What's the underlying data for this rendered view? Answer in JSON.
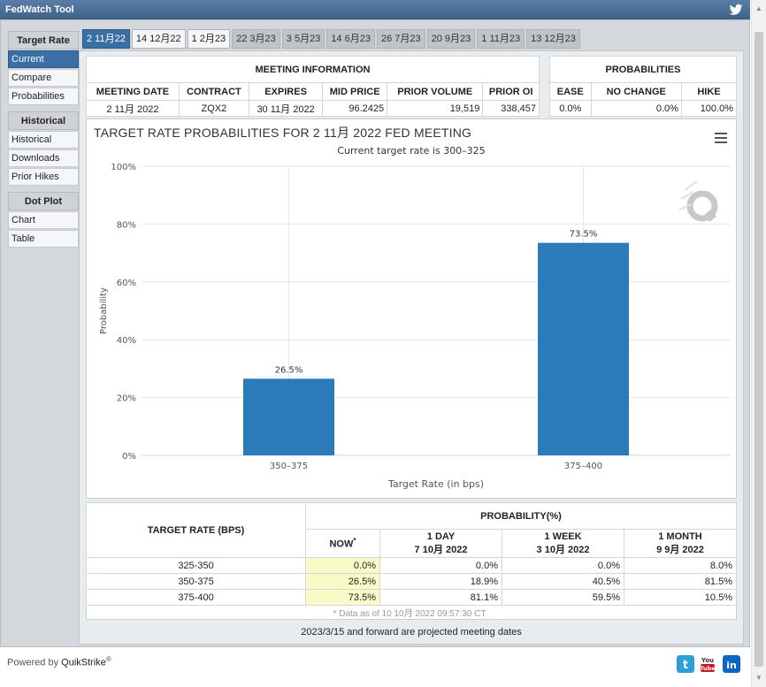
{
  "app": {
    "title": "FedWatch Tool"
  },
  "sidebar": {
    "groups": [
      {
        "header": "Target Rate",
        "items": [
          "Current",
          "Compare",
          "Probabilities"
        ]
      },
      {
        "header": "Historical",
        "items": [
          "Historical",
          "Downloads",
          "Prior Hikes"
        ]
      },
      {
        "header": "Dot Plot",
        "items": [
          "Chart",
          "Table"
        ]
      }
    ],
    "active_item": "Current"
  },
  "tabs": [
    "2 11月22",
    "14 12月22",
    "1 2月23",
    "22 3月23",
    "3 5月23",
    "14 6月23",
    "26 7月23",
    "20 9月23",
    "1 11月23",
    "13 12月23"
  ],
  "meeting": {
    "section_title": "MEETING INFORMATION",
    "headers": [
      "MEETING DATE",
      "CONTRACT",
      "EXPIRES",
      "MID PRICE",
      "PRIOR VOLUME",
      "PRIOR OI"
    ],
    "values": [
      "2 11月 2022",
      "ZQX2",
      "30 11月 2022",
      "96.2425",
      "19,519",
      "338,457"
    ]
  },
  "probabilities": {
    "section_title": "PROBABILITIES",
    "headers": [
      "EASE",
      "NO CHANGE",
      "HIKE"
    ],
    "values": [
      "0.0%",
      "0.0%",
      "100.0%"
    ]
  },
  "chart": {
    "title": "TARGET RATE PROBABILITIES FOR 2 11月 2022 FED MEETING",
    "subtitle": "Current target rate is 300–325"
  },
  "chart_data": {
    "type": "bar",
    "title": "TARGET RATE PROBABILITIES FOR 2 11月 2022 FED MEETING",
    "subtitle": "Current target rate is 300–325",
    "categories": [
      "350–375",
      "375–400"
    ],
    "values": [
      26.5,
      73.5
    ],
    "data_labels": [
      "26.5%",
      "73.5%"
    ],
    "xlabel": "Target Rate (in bps)",
    "ylabel": "Probability",
    "ylim": [
      0,
      100
    ],
    "yticks": [
      "0%",
      "20%",
      "40%",
      "60%",
      "80%",
      "100%"
    ],
    "grid": true,
    "bar_color": "#2b7bba"
  },
  "rate_table": {
    "rate_header": "TARGET RATE (BPS)",
    "prob_header": "PROBABILITY(%)",
    "columns": [
      {
        "label": "NOW",
        "sup": "*",
        "date": ""
      },
      {
        "label": "1 DAY",
        "date": "7 10月 2022"
      },
      {
        "label": "1 WEEK",
        "date": "3 10月 2022"
      },
      {
        "label": "1 MONTH",
        "date": "9 9月 2022"
      }
    ],
    "rows": [
      {
        "rate": "325-350",
        "now": "0.0%",
        "day": "0.0%",
        "week": "0.0%",
        "month": "8.0%"
      },
      {
        "rate": "350-375",
        "now": "26.5%",
        "day": "18.9%",
        "week": "40.5%",
        "month": "81.5%"
      },
      {
        "rate": "375-400",
        "now": "73.5%",
        "day": "81.1%",
        "week": "59.5%",
        "month": "10.5%"
      }
    ],
    "note": "* Data as of 10 10月 2022 09:57:30 CT"
  },
  "projected_note": "2023/3/15 and forward are projected meeting dates",
  "footer": {
    "powered_by": "Powered by",
    "brand": "QuikStrike",
    "reg": "®"
  },
  "social": [
    {
      "icon": "twitter-icon",
      "color": "#2a9fd8"
    },
    {
      "icon": "youtube-icon",
      "color": "#cc181e"
    },
    {
      "icon": "linkedin-icon",
      "color": "#0a66c2"
    }
  ],
  "colors": {
    "accent": "#3a6fa5",
    "bar": "#2b7bba",
    "now_highlight": "#fafac8"
  }
}
